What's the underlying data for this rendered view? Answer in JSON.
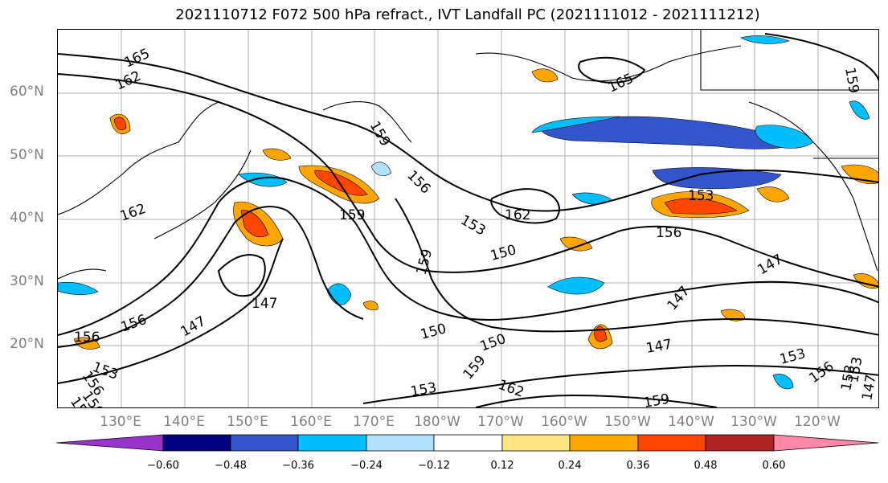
{
  "title": "2021110712 F072 500 hPa refract., IVT Landfall PC (2021111012 - 2021111212)",
  "lat_labels": [
    "60°N",
    "50°N",
    "40°N",
    "30°N",
    "20°N"
  ],
  "lon_labels": [
    "130°E",
    "140°E",
    "150°E",
    "160°E",
    "170°E",
    "180°W",
    "170°W",
    "160°W",
    "150°W",
    "140°W",
    "130°W",
    "120°W"
  ],
  "contour_labels": [
    "165",
    "162",
    "159",
    "156",
    "153",
    "162",
    "159",
    "159",
    "156",
    "153",
    "162",
    "150",
    "147",
    "159",
    "150",
    "150",
    "147",
    "153",
    "156",
    "165",
    "153",
    "156",
    "147",
    "147",
    "147",
    "153",
    "156",
    "159",
    "162",
    "153",
    "159",
    "156",
    "153",
    "156",
    "147",
    "156"
  ],
  "colorbar": {
    "ticks": [
      "−0.60",
      "−0.48",
      "−0.36",
      "−0.24",
      "−0.12",
      "0.12",
      "0.24",
      "0.36",
      "0.48",
      "0.60"
    ],
    "colors": [
      "#9933cc",
      "#000080",
      "#3355cc",
      "#00bfff",
      "#b0e2ff",
      "#ffffff",
      "#ffe680",
      "#ffa500",
      "#ff4500",
      "#b22222",
      "#ff88aa"
    ]
  }
}
